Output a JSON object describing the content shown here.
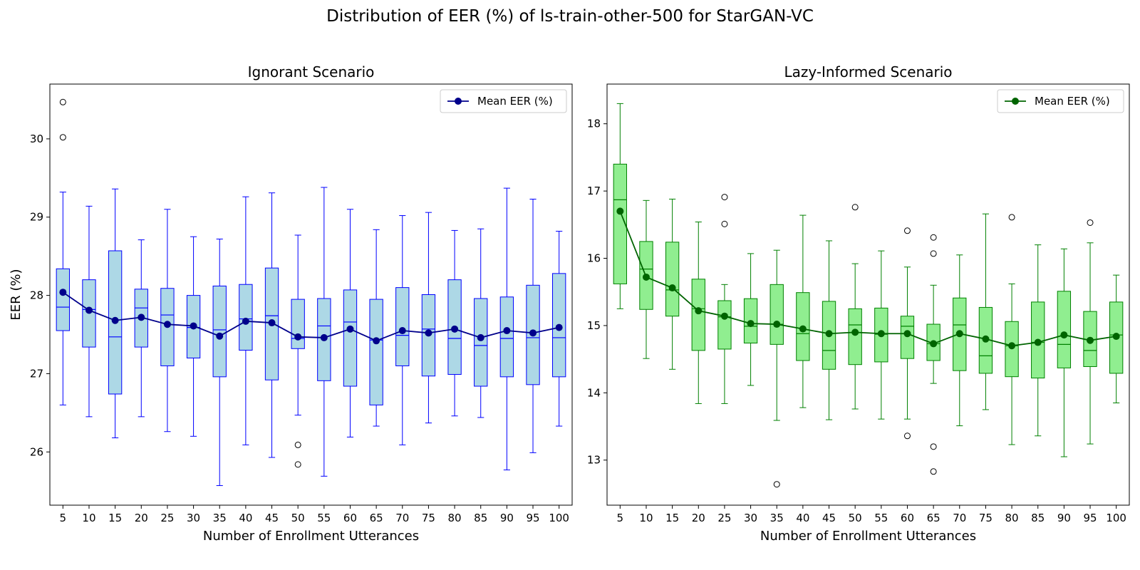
{
  "figure": {
    "title": "Distribution of EER (%) of ls-train-other-500 for StarGAN-VC"
  },
  "chart_data": [
    {
      "type": "box",
      "title": "Ignorant Scenario",
      "xlabel": "Number of Enrollment Utterances",
      "ylabel": "EER (%)",
      "categories": [
        "5",
        "10",
        "15",
        "20",
        "25",
        "30",
        "35",
        "40",
        "45",
        "50",
        "55",
        "60",
        "65",
        "70",
        "75",
        "80",
        "85",
        "90",
        "95",
        "100"
      ],
      "ylim": [
        25.32,
        30.7
      ],
      "yticks": [
        26,
        27,
        28,
        29,
        30
      ],
      "legend": {
        "label": "Mean EER (%)",
        "placement": "top-right"
      },
      "colors": {
        "box_fill": "#add8e6",
        "box_edge": "#0000ff",
        "mean_line": "#00008b"
      },
      "boxes": [
        {
          "whislo": 26.6,
          "q1": 27.55,
          "med": 27.85,
          "q3": 28.34,
          "whishi": 29.32,
          "fliers": [
            30.47,
            30.02
          ]
        },
        {
          "whislo": 26.45,
          "q1": 27.34,
          "med": 27.82,
          "q3": 28.2,
          "whishi": 29.14,
          "fliers": []
        },
        {
          "whislo": 26.18,
          "q1": 26.74,
          "med": 27.47,
          "q3": 28.57,
          "whishi": 29.36,
          "fliers": []
        },
        {
          "whislo": 26.45,
          "q1": 27.34,
          "med": 27.84,
          "q3": 28.08,
          "whishi": 28.71,
          "fliers": []
        },
        {
          "whislo": 26.26,
          "q1": 27.1,
          "med": 27.75,
          "q3": 28.09,
          "whishi": 29.1,
          "fliers": []
        },
        {
          "whislo": 26.2,
          "q1": 27.2,
          "med": 27.59,
          "q3": 28.0,
          "whishi": 28.75,
          "fliers": []
        },
        {
          "whislo": 25.57,
          "q1": 26.96,
          "med": 27.56,
          "q3": 28.12,
          "whishi": 28.72,
          "fliers": []
        },
        {
          "whislo": 26.09,
          "q1": 27.3,
          "med": 27.7,
          "q3": 28.14,
          "whishi": 29.26,
          "fliers": []
        },
        {
          "whislo": 25.93,
          "q1": 26.92,
          "med": 27.74,
          "q3": 28.35,
          "whishi": 29.31,
          "fliers": []
        },
        {
          "whislo": 26.47,
          "q1": 27.32,
          "med": 27.45,
          "q3": 27.95,
          "whishi": 28.77,
          "fliers": [
            26.09,
            25.84
          ]
        },
        {
          "whislo": 25.69,
          "q1": 26.91,
          "med": 27.61,
          "q3": 27.96,
          "whishi": 29.38,
          "fliers": []
        },
        {
          "whislo": 26.19,
          "q1": 26.84,
          "med": 27.66,
          "q3": 28.07,
          "whishi": 29.1,
          "fliers": []
        },
        {
          "whislo": 26.33,
          "q1": 26.6,
          "med": 27.43,
          "q3": 27.95,
          "whishi": 28.84,
          "fliers": []
        },
        {
          "whislo": 26.09,
          "q1": 27.1,
          "med": 27.49,
          "q3": 28.1,
          "whishi": 29.02,
          "fliers": []
        },
        {
          "whislo": 26.37,
          "q1": 26.97,
          "med": 27.57,
          "q3": 28.01,
          "whishi": 29.06,
          "fliers": []
        },
        {
          "whislo": 26.46,
          "q1": 26.99,
          "med": 27.45,
          "q3": 28.2,
          "whishi": 28.83,
          "fliers": []
        },
        {
          "whislo": 26.44,
          "q1": 26.84,
          "med": 27.36,
          "q3": 27.96,
          "whishi": 28.85,
          "fliers": []
        },
        {
          "whislo": 25.77,
          "q1": 26.96,
          "med": 27.45,
          "q3": 27.98,
          "whishi": 29.37,
          "fliers": []
        },
        {
          "whislo": 25.99,
          "q1": 26.86,
          "med": 27.46,
          "q3": 28.13,
          "whishi": 29.23,
          "fliers": []
        },
        {
          "whislo": 26.33,
          "q1": 26.96,
          "med": 27.46,
          "q3": 28.28,
          "whishi": 28.82,
          "fliers": []
        }
      ],
      "mean": [
        28.04,
        27.81,
        27.68,
        27.72,
        27.63,
        27.61,
        27.48,
        27.67,
        27.65,
        27.47,
        27.46,
        27.57,
        27.42,
        27.55,
        27.52,
        27.57,
        27.46,
        27.55,
        27.52,
        27.59
      ]
    },
    {
      "type": "box",
      "title": "Lazy-Informed Scenario",
      "xlabel": "Number of Enrollment Utterances",
      "ylabel": "",
      "categories": [
        "5",
        "10",
        "15",
        "20",
        "25",
        "30",
        "35",
        "40",
        "45",
        "50",
        "55",
        "60",
        "65",
        "70",
        "75",
        "80",
        "85",
        "90",
        "95",
        "100"
      ],
      "ylim": [
        12.33,
        18.59
      ],
      "yticks": [
        13,
        14,
        15,
        16,
        17,
        18
      ],
      "legend": {
        "label": "Mean EER (%)",
        "placement": "top-right"
      },
      "colors": {
        "box_fill": "#90ee90",
        "box_edge": "#008000",
        "mean_line": "#006400"
      },
      "boxes": [
        {
          "whislo": 15.25,
          "q1": 15.62,
          "med": 16.87,
          "q3": 17.4,
          "whishi": 18.3,
          "fliers": []
        },
        {
          "whislo": 14.51,
          "q1": 15.24,
          "med": 15.84,
          "q3": 16.25,
          "whishi": 16.86,
          "fliers": []
        },
        {
          "whislo": 14.35,
          "q1": 15.14,
          "med": 15.53,
          "q3": 16.24,
          "whishi": 16.88,
          "fliers": []
        },
        {
          "whislo": 13.84,
          "q1": 14.63,
          "med": 15.25,
          "q3": 15.69,
          "whishi": 16.54,
          "fliers": []
        },
        {
          "whislo": 13.84,
          "q1": 14.65,
          "med": 15.13,
          "q3": 15.37,
          "whishi": 15.61,
          "fliers": [
            16.91,
            16.51
          ]
        },
        {
          "whislo": 14.11,
          "q1": 14.74,
          "med": 14.99,
          "q3": 15.4,
          "whishi": 16.07,
          "fliers": []
        },
        {
          "whislo": 13.59,
          "q1": 14.72,
          "med": 15.02,
          "q3": 15.61,
          "whishi": 16.12,
          "fliers": [
            12.64
          ]
        },
        {
          "whislo": 13.78,
          "q1": 14.48,
          "med": 14.88,
          "q3": 15.49,
          "whishi": 16.64,
          "fliers": []
        },
        {
          "whislo": 13.6,
          "q1": 14.35,
          "med": 14.63,
          "q3": 15.36,
          "whishi": 16.26,
          "fliers": []
        },
        {
          "whislo": 13.76,
          "q1": 14.42,
          "med": 15.01,
          "q3": 15.25,
          "whishi": 15.92,
          "fliers": [
            16.76
          ]
        },
        {
          "whislo": 13.61,
          "q1": 14.46,
          "med": 14.87,
          "q3": 15.26,
          "whishi": 16.11,
          "fliers": []
        },
        {
          "whislo": 13.61,
          "q1": 14.51,
          "med": 14.99,
          "q3": 15.14,
          "whishi": 15.87,
          "fliers": [
            16.41,
            13.36
          ]
        },
        {
          "whislo": 14.14,
          "q1": 14.48,
          "med": 14.73,
          "q3": 15.02,
          "whishi": 15.6,
          "fliers": [
            16.31,
            16.07,
            13.2,
            12.83
          ]
        },
        {
          "whislo": 13.51,
          "q1": 14.33,
          "med": 15.01,
          "q3": 15.41,
          "whishi": 16.05,
          "fliers": []
        },
        {
          "whislo": 13.75,
          "q1": 14.29,
          "med": 14.55,
          "q3": 15.27,
          "whishi": 16.66,
          "fliers": []
        },
        {
          "whislo": 13.23,
          "q1": 14.24,
          "med": 14.7,
          "q3": 15.06,
          "whishi": 15.62,
          "fliers": [
            16.61
          ]
        },
        {
          "whislo": 13.36,
          "q1": 14.22,
          "med": 14.75,
          "q3": 15.35,
          "whishi": 16.2,
          "fliers": []
        },
        {
          "whislo": 13.05,
          "q1": 14.37,
          "med": 14.72,
          "q3": 15.51,
          "whishi": 16.14,
          "fliers": []
        },
        {
          "whislo": 13.24,
          "q1": 14.39,
          "med": 14.63,
          "q3": 15.21,
          "whishi": 16.23,
          "fliers": [
            16.53
          ]
        },
        {
          "whislo": 13.85,
          "q1": 14.29,
          "med": 14.86,
          "q3": 15.35,
          "whishi": 15.75,
          "fliers": []
        }
      ],
      "mean": [
        16.7,
        15.72,
        15.56,
        15.22,
        15.14,
        15.03,
        15.02,
        14.95,
        14.88,
        14.9,
        14.88,
        14.88,
        14.73,
        14.88,
        14.8,
        14.7,
        14.75,
        14.86,
        14.78,
        14.84
      ]
    }
  ]
}
